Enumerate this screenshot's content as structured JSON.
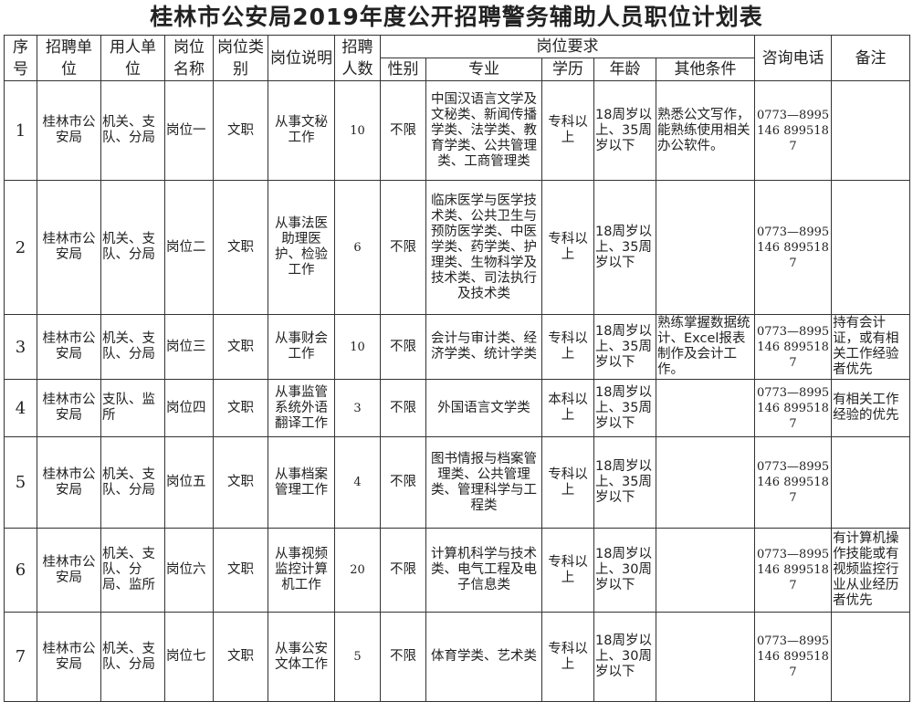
{
  "title": "桂林市公安局2019年度公开招聘警务辅助人员职位计划表",
  "headers": {
    "seq": "序号",
    "unit": "招聘单位",
    "employer": "用人单位",
    "post_name": "岗位名称",
    "post_type": "岗位类别",
    "post_desc": "岗位说明",
    "count": "招聘人数",
    "requirements": "岗位要求",
    "gender": "性别",
    "major": "专业",
    "education": "学历",
    "age": "年龄",
    "other": "其他条件",
    "phone": "咨询电话",
    "notes": "备注"
  },
  "rows": [
    {
      "seq": "1",
      "unit": "桂林市公安局",
      "employer": "机关、支队、分局",
      "post_name": "岗位一",
      "post_type": "文职",
      "post_desc": "从事文秘工作",
      "count": "10",
      "gender": "不限",
      "major": "中国汉语言文学及文秘类、新闻传播学类、法学类、教育学类、公共管理类、工商管理类",
      "education": "专科以上",
      "age": "18周岁以上、35周岁以下",
      "other": "熟悉公文写作，能熟练使用相关办公软件。",
      "phone": "0773—8995146 8995187",
      "notes": ""
    },
    {
      "seq": "2",
      "unit": "桂林市公安局",
      "employer": "机关、支队、分局",
      "post_name": "岗位二",
      "post_type": "文职",
      "post_desc": "从事法医助理医护、检验工作",
      "count": "6",
      "gender": "不限",
      "major": "临床医学与医学技术类、公共卫生与预防医学类、中医学类、药学类、护理类、生物科学及技术类、司法执行及技术类",
      "education": "专科以上",
      "age": "18周岁以上、35周岁以下",
      "other": "",
      "phone": "0773—8995146 8995187",
      "notes": ""
    },
    {
      "seq": "3",
      "unit": "桂林市公安局",
      "employer": "机关、支队、分局",
      "post_name": "岗位三",
      "post_type": "文职",
      "post_desc": "从事财会工作",
      "count": "10",
      "gender": "不限",
      "major": "会计与审计类、经济学类、统计学类",
      "education": "专科以上",
      "age": "18周岁以上、35周岁以下",
      "other": "熟练掌握数据统计、Excel报表制作及会计工作。",
      "phone": "0773—8995146 8995187",
      "notes": "持有会计证，或有相关工作经验者优先"
    },
    {
      "seq": "4",
      "unit": "桂林市公安局",
      "employer": "支队、监所",
      "post_name": "岗位四",
      "post_type": "文职",
      "post_desc": "从事监管系统外语翻译工作",
      "count": "3",
      "gender": "不限",
      "major": "外国语言文学类",
      "education": "本科以上",
      "age": "18周岁以上、35周岁以下",
      "other": "",
      "phone": "0773—8995146 8995187",
      "notes": "有相关工作经验的优先"
    },
    {
      "seq": "5",
      "unit": "桂林市公安局",
      "employer": "机关、支队、分局",
      "post_name": "岗位五",
      "post_type": "文职",
      "post_desc": "从事档案管理工作",
      "count": "4",
      "gender": "不限",
      "major": "图书情报与档案管理类、公共管理类、管理科学与工程类",
      "education": "专科以上",
      "age": "18周岁以上、35周岁以下",
      "other": "",
      "phone": "0773—8995146 8995187",
      "notes": ""
    },
    {
      "seq": "6",
      "unit": "桂林市公安局",
      "employer": "机关、支队、分局、监所",
      "post_name": "岗位六",
      "post_type": "文职",
      "post_desc": "从事视频监控计算机工作",
      "count": "20",
      "gender": "不限",
      "major": "计算机科学与技术类、电气工程及电子信息类",
      "education": "专科以上",
      "age": "18周岁以上、30周岁以下",
      "other": "",
      "phone": "0773—8995146 8995187",
      "notes": "有计算机操作技能或有视频监控行业从业经历者优先"
    },
    {
      "seq": "7",
      "unit": "桂林市公安局",
      "employer": "机关、支队、分局",
      "post_name": "岗位七",
      "post_type": "文职",
      "post_desc": "从事公安文体工作",
      "count": "5",
      "gender": "不限",
      "major": "体育学类、艺术类",
      "education": "专科以上",
      "age": "18周岁以上、30周岁以下",
      "other": "",
      "phone": "0773—8995146 8995187",
      "notes": ""
    }
  ]
}
